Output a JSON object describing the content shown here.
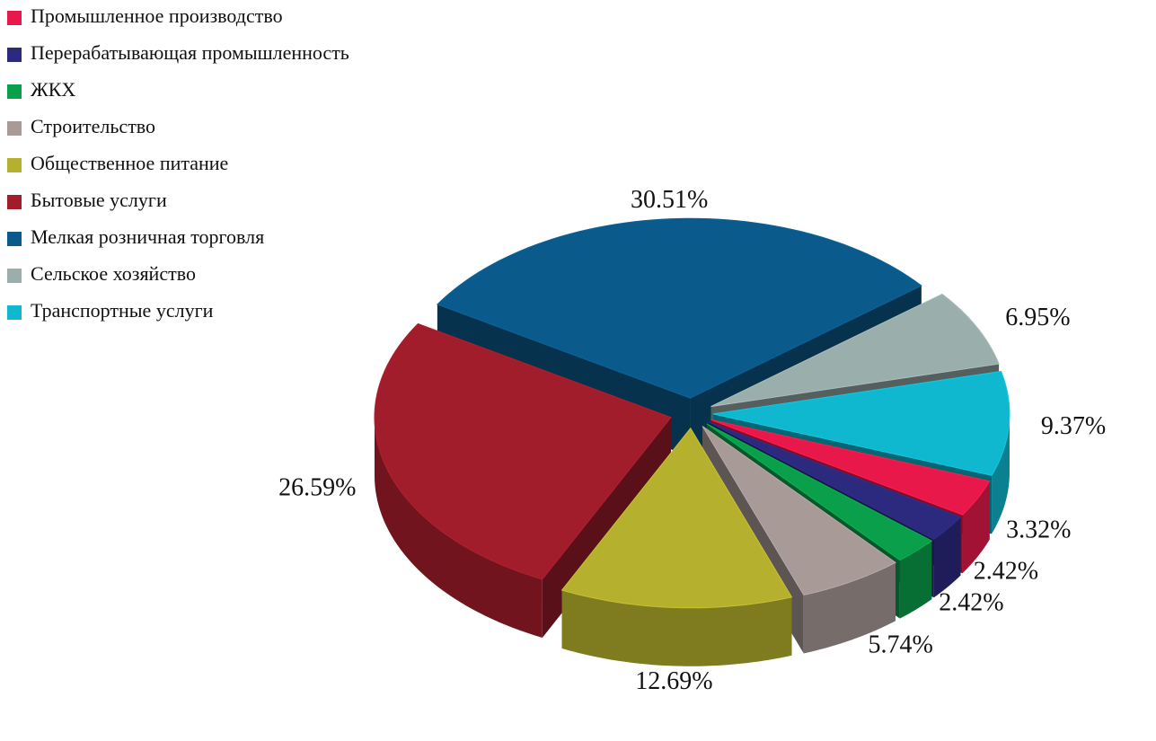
{
  "chart_data": {
    "type": "pie",
    "categories": [
      "Промышленное производство",
      "Перерабатывающая промышленность",
      "ЖКХ",
      "Строительство",
      "Общественное питание",
      "Бытовые услуги",
      "Мелкая розничная торговля",
      "Сельское хозяйство",
      "Транспортные услуги"
    ],
    "values": [
      3.32,
      2.42,
      2.42,
      5.74,
      12.69,
      26.59,
      30.51,
      6.95,
      9.37
    ],
    "value_labels": [
      "3.32%",
      "2.42%",
      "2.42%",
      "5.74%",
      "12.69%",
      "26.59%",
      "30.51%",
      "6.95%",
      "9.37%"
    ],
    "colors": [
      "#e8194a",
      "#2b2a7f",
      "#0a9f4a",
      "#a89a97",
      "#b5b02d",
      "#a11d2b",
      "#0b5a8c",
      "#9aaeab",
      "#0fb7cf"
    ],
    "legend": "top-left"
  }
}
